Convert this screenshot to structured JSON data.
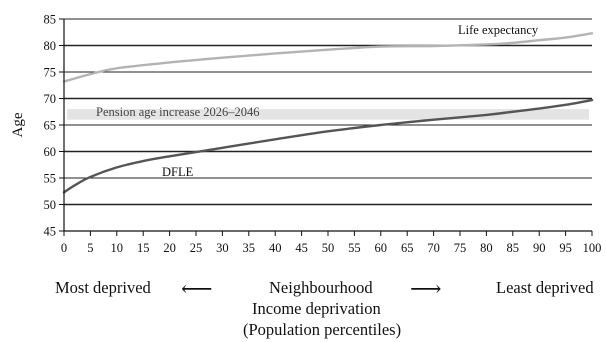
{
  "chart_data": {
    "type": "line",
    "ylabel": "Age",
    "xlim": [
      0,
      100
    ],
    "ylim": [
      45,
      85
    ],
    "xticks": [
      "0",
      "5",
      "10",
      "15",
      "20",
      "25",
      "30",
      "35",
      "40",
      "45",
      "50",
      "55",
      "60",
      "65",
      "70",
      "75",
      "80",
      "85",
      "90",
      "95",
      "100"
    ],
    "yticks": [
      "45",
      "50",
      "55",
      "60",
      "65",
      "70",
      "75",
      "80",
      "85"
    ],
    "grid": "horizontal",
    "band": {
      "label": "Pension age increase 2026–2046",
      "y_from": 66,
      "y_to": 68,
      "color": "#e4e4e4"
    },
    "series": [
      {
        "name": "Life expectancy",
        "color": "#b3b3b3",
        "x": [
          0,
          5,
          10,
          20,
          30,
          40,
          50,
          60,
          70,
          80,
          85,
          90,
          95,
          100
        ],
        "values": [
          73.2,
          74.6,
          75.7,
          76.8,
          77.7,
          78.5,
          79.2,
          79.8,
          79.9,
          80.2,
          80.5,
          81.0,
          81.5,
          82.3
        ]
      },
      {
        "name": "DFLE",
        "color": "#555555",
        "x": [
          0,
          2,
          5,
          10,
          15,
          20,
          30,
          40,
          50,
          60,
          70,
          80,
          85,
          90,
          95,
          100
        ],
        "values": [
          52.3,
          53.6,
          55.2,
          57.0,
          58.2,
          59.1,
          60.7,
          62.3,
          63.8,
          65.0,
          66.0,
          66.9,
          67.5,
          68.1,
          68.8,
          69.7
        ]
      }
    ]
  },
  "axis_caption": {
    "left": "Most deprived",
    "center": "Neighbourhood",
    "line2": "Income deprivation",
    "line3": "(Population percentiles)",
    "right": "Least deprived",
    "arrow_left": "⟵",
    "arrow_right": "⟶"
  }
}
